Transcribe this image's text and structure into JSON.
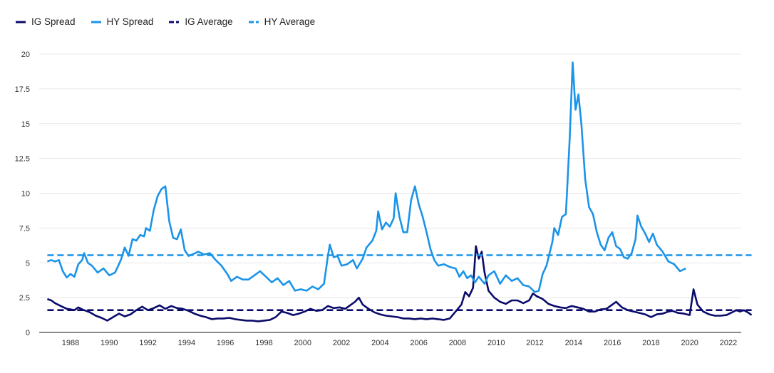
{
  "chart_data": {
    "type": "line",
    "title": "",
    "xlabel": "",
    "ylabel": "",
    "ylim": [
      0,
      20
    ],
    "xlim": [
      1986.4,
      2023.6
    ],
    "grid": true,
    "legend_position": "top-left",
    "y_ticks": [
      "0",
      "2.5",
      "5",
      "7.5",
      "10",
      "12.5",
      "15",
      "17.5",
      "20"
    ],
    "y_tick_values": [
      0,
      2.5,
      5,
      7.5,
      10,
      12.5,
      15,
      17.5,
      20
    ],
    "x_ticks": [
      "1988",
      "1990",
      "1992",
      "1994",
      "1996",
      "1998",
      "2000",
      "2002",
      "2004",
      "2006",
      "2008",
      "2010",
      "2012",
      "2014",
      "2016",
      "2018",
      "2020",
      "2022"
    ],
    "x_tick_values": [
      1988,
      1990,
      1992,
      1994,
      1996,
      1998,
      2000,
      2002,
      2004,
      2006,
      2008,
      2010,
      2012,
      2014,
      2016,
      2018,
      2020,
      2022
    ],
    "series": [
      {
        "name": "IG Spread",
        "color": "#0b0b6b",
        "style": "solid",
        "points": [
          [
            1986.8,
            2.4
          ],
          [
            1987.0,
            2.3
          ],
          [
            1987.2,
            2.1
          ],
          [
            1987.5,
            1.9
          ],
          [
            1987.8,
            1.7
          ],
          [
            1988.0,
            1.65
          ],
          [
            1988.2,
            1.6
          ],
          [
            1988.4,
            1.8
          ],
          [
            1988.6,
            1.65
          ],
          [
            1988.8,
            1.55
          ],
          [
            1989.0,
            1.45
          ],
          [
            1989.3,
            1.2
          ],
          [
            1989.6,
            1.05
          ],
          [
            1989.9,
            0.85
          ],
          [
            1990.2,
            1.1
          ],
          [
            1990.5,
            1.35
          ],
          [
            1990.8,
            1.15
          ],
          [
            1991.1,
            1.3
          ],
          [
            1991.4,
            1.6
          ],
          [
            1991.7,
            1.85
          ],
          [
            1992.0,
            1.6
          ],
          [
            1992.3,
            1.75
          ],
          [
            1992.6,
            1.95
          ],
          [
            1992.9,
            1.7
          ],
          [
            1993.2,
            1.9
          ],
          [
            1993.5,
            1.75
          ],
          [
            1993.8,
            1.7
          ],
          [
            1994.1,
            1.55
          ],
          [
            1994.4,
            1.35
          ],
          [
            1994.7,
            1.2
          ],
          [
            1995.0,
            1.1
          ],
          [
            1995.3,
            0.95
          ],
          [
            1995.6,
            1.0
          ],
          [
            1995.9,
            1.0
          ],
          [
            1996.2,
            1.05
          ],
          [
            1996.5,
            0.95
          ],
          [
            1996.8,
            0.9
          ],
          [
            1997.1,
            0.85
          ],
          [
            1997.4,
            0.85
          ],
          [
            1997.7,
            0.8
          ],
          [
            1998.0,
            0.85
          ],
          [
            1998.3,
            0.9
          ],
          [
            1998.6,
            1.1
          ],
          [
            1998.9,
            1.5
          ],
          [
            1999.2,
            1.4
          ],
          [
            1999.5,
            1.25
          ],
          [
            1999.8,
            1.35
          ],
          [
            2000.1,
            1.5
          ],
          [
            2000.4,
            1.7
          ],
          [
            2000.7,
            1.55
          ],
          [
            2001.0,
            1.6
          ],
          [
            2001.3,
            1.9
          ],
          [
            2001.6,
            1.75
          ],
          [
            2001.9,
            1.8
          ],
          [
            2002.2,
            1.7
          ],
          [
            2002.5,
            2.0
          ],
          [
            2002.7,
            2.2
          ],
          [
            2002.9,
            2.5
          ],
          [
            2003.1,
            2.0
          ],
          [
            2003.4,
            1.7
          ],
          [
            2003.7,
            1.45
          ],
          [
            2004.0,
            1.3
          ],
          [
            2004.3,
            1.2
          ],
          [
            2004.6,
            1.15
          ],
          [
            2004.9,
            1.1
          ],
          [
            2005.2,
            1.0
          ],
          [
            2005.5,
            1.0
          ],
          [
            2005.8,
            0.95
          ],
          [
            2006.1,
            1.0
          ],
          [
            2006.4,
            0.95
          ],
          [
            2006.7,
            1.0
          ],
          [
            2007.0,
            0.95
          ],
          [
            2007.3,
            0.9
          ],
          [
            2007.6,
            1.0
          ],
          [
            2007.9,
            1.5
          ],
          [
            2008.2,
            2.0
          ],
          [
            2008.4,
            2.9
          ],
          [
            2008.6,
            2.6
          ],
          [
            2008.8,
            3.2
          ],
          [
            2008.95,
            6.2
          ],
          [
            2009.1,
            5.3
          ],
          [
            2009.25,
            5.8
          ],
          [
            2009.4,
            4.3
          ],
          [
            2009.6,
            3.0
          ],
          [
            2009.9,
            2.5
          ],
          [
            2010.2,
            2.2
          ],
          [
            2010.5,
            2.05
          ],
          [
            2010.8,
            2.3
          ],
          [
            2011.1,
            2.3
          ],
          [
            2011.4,
            2.1
          ],
          [
            2011.7,
            2.3
          ],
          [
            2011.9,
            2.8
          ],
          [
            2012.1,
            2.6
          ],
          [
            2012.4,
            2.4
          ],
          [
            2012.7,
            2.05
          ],
          [
            2013.0,
            1.9
          ],
          [
            2013.3,
            1.8
          ],
          [
            2013.6,
            1.75
          ],
          [
            2013.9,
            1.9
          ],
          [
            2014.2,
            1.8
          ],
          [
            2014.5,
            1.7
          ],
          [
            2014.8,
            1.5
          ],
          [
            2015.1,
            1.5
          ],
          [
            2015.4,
            1.65
          ],
          [
            2015.7,
            1.7
          ],
          [
            2016.0,
            2.0
          ],
          [
            2016.2,
            2.2
          ],
          [
            2016.5,
            1.8
          ],
          [
            2016.8,
            1.6
          ],
          [
            2017.1,
            1.5
          ],
          [
            2017.4,
            1.4
          ],
          [
            2017.7,
            1.3
          ],
          [
            2018.0,
            1.1
          ],
          [
            2018.3,
            1.3
          ],
          [
            2018.6,
            1.35
          ],
          [
            2018.9,
            1.5
          ],
          [
            2019.1,
            1.55
          ],
          [
            2019.4,
            1.4
          ],
          [
            2019.7,
            1.35
          ],
          [
            2020.0,
            1.25
          ],
          [
            2020.2,
            3.1
          ],
          [
            2020.4,
            2.0
          ],
          [
            2020.7,
            1.5
          ],
          [
            2021.0,
            1.3
          ],
          [
            2021.3,
            1.2
          ],
          [
            2021.6,
            1.2
          ],
          [
            2021.9,
            1.25
          ],
          [
            2022.2,
            1.45
          ],
          [
            2022.4,
            1.6
          ],
          [
            2022.6,
            1.5
          ],
          [
            2022.8,
            1.6
          ],
          [
            2023.0,
            1.45
          ],
          [
            2023.2,
            1.25
          ]
        ]
      },
      {
        "name": "HY Spread",
        "color": "#1a94e8",
        "style": "solid",
        "points": [
          [
            1986.8,
            5.1
          ],
          [
            1987.0,
            5.2
          ],
          [
            1987.2,
            5.1
          ],
          [
            1987.4,
            5.2
          ],
          [
            1987.6,
            4.4
          ],
          [
            1987.8,
            3.95
          ],
          [
            1988.0,
            4.2
          ],
          [
            1988.2,
            4.0
          ],
          [
            1988.4,
            4.9
          ],
          [
            1988.6,
            5.2
          ],
          [
            1988.7,
            5.7
          ],
          [
            1988.9,
            5.0
          ],
          [
            1989.1,
            4.8
          ],
          [
            1989.4,
            4.3
          ],
          [
            1989.7,
            4.6
          ],
          [
            1990.0,
            4.1
          ],
          [
            1990.3,
            4.3
          ],
          [
            1990.6,
            5.2
          ],
          [
            1990.8,
            6.1
          ],
          [
            1991.0,
            5.5
          ],
          [
            1991.2,
            6.7
          ],
          [
            1991.4,
            6.6
          ],
          [
            1991.6,
            7.0
          ],
          [
            1991.8,
            6.9
          ],
          [
            1991.9,
            7.5
          ],
          [
            1992.1,
            7.3
          ],
          [
            1992.3,
            8.8
          ],
          [
            1992.5,
            9.8
          ],
          [
            1992.7,
            10.3
          ],
          [
            1992.9,
            10.5
          ],
          [
            1993.1,
            8.0
          ],
          [
            1993.3,
            6.8
          ],
          [
            1993.5,
            6.7
          ],
          [
            1993.7,
            7.4
          ],
          [
            1993.9,
            5.9
          ],
          [
            1994.1,
            5.5
          ],
          [
            1994.3,
            5.6
          ],
          [
            1994.6,
            5.8
          ],
          [
            1994.9,
            5.6
          ],
          [
            1995.2,
            5.7
          ],
          [
            1995.5,
            5.2
          ],
          [
            1995.8,
            4.8
          ],
          [
            1996.1,
            4.2
          ],
          [
            1996.3,
            3.7
          ],
          [
            1996.6,
            4.0
          ],
          [
            1996.9,
            3.8
          ],
          [
            1997.2,
            3.8
          ],
          [
            1997.5,
            4.1
          ],
          [
            1997.8,
            4.4
          ],
          [
            1998.1,
            4.0
          ],
          [
            1998.4,
            3.6
          ],
          [
            1998.7,
            3.9
          ],
          [
            1999.0,
            3.4
          ],
          [
            1999.3,
            3.7
          ],
          [
            1999.6,
            3.0
          ],
          [
            1999.9,
            3.1
          ],
          [
            2000.2,
            3.0
          ],
          [
            2000.5,
            3.3
          ],
          [
            2000.8,
            3.1
          ],
          [
            2001.1,
            3.5
          ],
          [
            2001.3,
            5.5
          ],
          [
            2001.4,
            6.3
          ],
          [
            2001.6,
            5.4
          ],
          [
            2001.8,
            5.5
          ],
          [
            2002.0,
            4.8
          ],
          [
            2002.3,
            4.9
          ],
          [
            2002.6,
            5.2
          ],
          [
            2002.8,
            4.6
          ],
          [
            2003.1,
            5.3
          ],
          [
            2003.3,
            6.1
          ],
          [
            2003.6,
            6.6
          ],
          [
            2003.8,
            7.3
          ],
          [
            2003.9,
            8.7
          ],
          [
            2004.1,
            7.4
          ],
          [
            2004.3,
            7.9
          ],
          [
            2004.5,
            7.6
          ],
          [
            2004.7,
            8.2
          ],
          [
            2004.8,
            10.0
          ],
          [
            2005.0,
            8.3
          ],
          [
            2005.2,
            7.2
          ],
          [
            2005.4,
            7.2
          ],
          [
            2005.6,
            9.5
          ],
          [
            2005.8,
            10.5
          ],
          [
            2006.0,
            9.2
          ],
          [
            2006.2,
            8.3
          ],
          [
            2006.4,
            7.2
          ],
          [
            2006.6,
            6.0
          ],
          [
            2006.8,
            5.2
          ],
          [
            2007.0,
            4.8
          ],
          [
            2007.3,
            4.9
          ],
          [
            2007.6,
            4.7
          ],
          [
            2007.9,
            4.6
          ],
          [
            2008.1,
            4.0
          ],
          [
            2008.3,
            4.4
          ],
          [
            2008.5,
            3.9
          ],
          [
            2008.7,
            4.1
          ],
          [
            2008.9,
            3.6
          ],
          [
            2009.1,
            4.0
          ],
          [
            2009.4,
            3.5
          ],
          [
            2009.6,
            4.1
          ],
          [
            2009.9,
            4.4
          ],
          [
            2010.2,
            3.5
          ],
          [
            2010.5,
            4.1
          ],
          [
            2010.8,
            3.7
          ],
          [
            2011.1,
            3.9
          ],
          [
            2011.4,
            3.4
          ],
          [
            2011.7,
            3.3
          ],
          [
            2012.0,
            2.9
          ],
          [
            2012.2,
            3.0
          ],
          [
            2012.4,
            4.2
          ],
          [
            2012.6,
            4.8
          ],
          [
            2012.9,
            6.5
          ],
          [
            2013.0,
            7.5
          ],
          [
            2013.2,
            7.0
          ],
          [
            2013.4,
            8.3
          ],
          [
            2013.6,
            8.5
          ],
          [
            2013.8,
            14.0
          ],
          [
            2013.95,
            19.4
          ],
          [
            2014.1,
            16.0
          ],
          [
            2014.25,
            17.1
          ],
          [
            2014.4,
            15.0
          ],
          [
            2014.6,
            11.0
          ],
          [
            2014.8,
            9.0
          ],
          [
            2015.0,
            8.5
          ],
          [
            2015.2,
            7.2
          ],
          [
            2015.4,
            6.3
          ],
          [
            2015.6,
            5.9
          ],
          [
            2015.8,
            6.8
          ],
          [
            2016.0,
            7.2
          ],
          [
            2016.2,
            6.2
          ],
          [
            2016.4,
            6.0
          ],
          [
            2016.6,
            5.4
          ],
          [
            2016.8,
            5.3
          ],
          [
            2017.0,
            5.7
          ],
          [
            2017.2,
            6.7
          ],
          [
            2017.3,
            8.4
          ],
          [
            2017.5,
            7.6
          ],
          [
            2017.7,
            7.1
          ],
          [
            2017.9,
            6.5
          ],
          [
            2018.1,
            7.1
          ],
          [
            2018.3,
            6.3
          ],
          [
            2018.6,
            5.8
          ],
          [
            2018.9,
            5.1
          ],
          [
            2019.2,
            4.9
          ],
          [
            2019.5,
            4.4
          ],
          [
            2019.8,
            4.6
          ]
        ]
      },
      {
        "name": "IG Average",
        "color": "#0b0b6b",
        "style": "dashed",
        "value": 1.6
      },
      {
        "name": "HY Average",
        "color": "#1a94e8",
        "style": "dashed",
        "value": 5.55
      }
    ]
  },
  "legend": {
    "items": [
      {
        "label": "IG Spread",
        "color": "#0b0b6b",
        "style": "solid"
      },
      {
        "label": "HY Spread",
        "color": "#1a94e8",
        "style": "solid"
      },
      {
        "label": "IG Average",
        "color": "#0b0b6b",
        "style": "dashed"
      },
      {
        "label": "HY Average",
        "color": "#1a94e8",
        "style": "dashed"
      }
    ]
  }
}
